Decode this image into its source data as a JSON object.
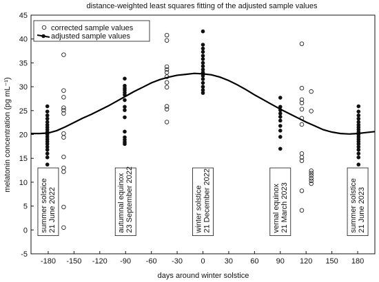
{
  "chart_data": {
    "type": "scatter",
    "title": "distance-weighted least squares fitting of the adjusted sample values",
    "xlabel": "days around winter solstice",
    "ylabel": "melatonin concentration (pg mL⁻¹)",
    "xlim": [
      -200,
      200
    ],
    "ylim": [
      -5,
      45
    ],
    "x_ticks": [
      "-180",
      "-150",
      "-120",
      "-90",
      "-60",
      "-30",
      "0",
      "30",
      "60",
      "90",
      "120",
      "150",
      "180"
    ],
    "y_ticks": [
      "-5",
      "0",
      "5",
      "10",
      "15",
      "20",
      "25",
      "30",
      "35",
      "40",
      "45"
    ],
    "grid": false,
    "legend_position": "top-left",
    "series": [
      {
        "name": "corrected sample values",
        "marker": "open-circle",
        "color": "#222222",
        "points": [
          [
            -162,
            36.7
          ],
          [
            -162,
            29.2
          ],
          [
            -162,
            27.8
          ],
          [
            -162,
            25.6
          ],
          [
            -162,
            25.1
          ],
          [
            -162,
            24.4
          ],
          [
            -162,
            20.2
          ],
          [
            -162,
            19.4
          ],
          [
            -162,
            15.3
          ],
          [
            -162,
            13.0
          ],
          [
            -162,
            12.2
          ],
          [
            -162,
            4.8
          ],
          [
            -162,
            0.5
          ],
          [
            -42,
            40.8
          ],
          [
            -42,
            39.7
          ],
          [
            -42,
            34.2
          ],
          [
            -42,
            33.6
          ],
          [
            -42,
            33.0
          ],
          [
            -42,
            32.1
          ],
          [
            -42,
            30.9
          ],
          [
            -42,
            29.9
          ],
          [
            -42,
            25.9
          ],
          [
            -42,
            25.3
          ],
          [
            -42,
            22.6
          ],
          [
            115,
            39.0
          ],
          [
            115,
            29.7
          ],
          [
            115,
            27.3
          ],
          [
            115,
            26.6
          ],
          [
            115,
            25.3
          ],
          [
            115,
            23.4
          ],
          [
            115,
            22.1
          ],
          [
            115,
            16.0
          ],
          [
            115,
            15.2
          ],
          [
            115,
            14.5
          ],
          [
            115,
            8.2
          ],
          [
            115,
            4.1
          ],
          [
            126,
            29.0
          ],
          [
            126,
            24.9
          ],
          [
            126,
            12.4
          ],
          [
            126,
            11.9
          ],
          [
            126,
            11.4
          ],
          [
            126,
            10.8
          ],
          [
            126,
            10.3
          ],
          [
            126,
            9.7
          ]
        ]
      },
      {
        "name": "adjusted sample values",
        "marker": "filled-circle",
        "color": "#111111",
        "points": [
          [
            -181,
            25.9
          ],
          [
            -181,
            24.8
          ],
          [
            -181,
            24.0
          ],
          [
            -181,
            23.3
          ],
          [
            -181,
            22.6
          ],
          [
            -181,
            22.0
          ],
          [
            -181,
            21.5
          ],
          [
            -181,
            21.0
          ],
          [
            -181,
            20.5
          ],
          [
            -181,
            20.0
          ],
          [
            -181,
            19.5
          ],
          [
            -181,
            19.0
          ],
          [
            -181,
            18.5
          ],
          [
            -181,
            18.0
          ],
          [
            -181,
            17.4
          ],
          [
            -181,
            16.8
          ],
          [
            -181,
            16.0
          ],
          [
            -181,
            15.2
          ],
          [
            -181,
            13.7
          ],
          [
            -91,
            31.7
          ],
          [
            -91,
            30.2
          ],
          [
            -91,
            29.7
          ],
          [
            -91,
            29.3
          ],
          [
            -91,
            28.8
          ],
          [
            -91,
            28.3
          ],
          [
            -91,
            27.2
          ],
          [
            -91,
            25.8
          ],
          [
            -91,
            25.1
          ],
          [
            -91,
            23.6
          ],
          [
            -91,
            20.6
          ],
          [
            -91,
            19.4
          ],
          [
            -91,
            18.9
          ],
          [
            -91,
            18.4
          ],
          [
            -91,
            18.0
          ],
          [
            0,
            41.6
          ],
          [
            0,
            38.8
          ],
          [
            0,
            38.0
          ],
          [
            0,
            37.3
          ],
          [
            0,
            36.5
          ],
          [
            0,
            35.8
          ],
          [
            0,
            35.0
          ],
          [
            0,
            34.3
          ],
          [
            0,
            33.6
          ],
          [
            0,
            33.0
          ],
          [
            0,
            32.3
          ],
          [
            0,
            31.6
          ],
          [
            0,
            30.8
          ],
          [
            0,
            30.0
          ],
          [
            0,
            29.3
          ],
          [
            0,
            28.7
          ],
          [
            90,
            27.7
          ],
          [
            90,
            25.8
          ],
          [
            90,
            25.1
          ],
          [
            90,
            24.4
          ],
          [
            90,
            23.7
          ],
          [
            90,
            22.9
          ],
          [
            90,
            21.8
          ],
          [
            90,
            20.8
          ],
          [
            90,
            19.5
          ],
          [
            90,
            17.0
          ],
          [
            181,
            25.9
          ],
          [
            181,
            24.8
          ],
          [
            181,
            24.0
          ],
          [
            181,
            23.3
          ],
          [
            181,
            22.6
          ],
          [
            181,
            22.0
          ],
          [
            181,
            21.5
          ],
          [
            181,
            21.0
          ],
          [
            181,
            20.5
          ],
          [
            181,
            20.0
          ],
          [
            181,
            19.5
          ],
          [
            181,
            19.0
          ],
          [
            181,
            18.5
          ],
          [
            181,
            18.0
          ],
          [
            181,
            17.4
          ],
          [
            181,
            16.8
          ],
          [
            181,
            16.0
          ],
          [
            181,
            15.2
          ],
          [
            181,
            13.7
          ]
        ]
      }
    ],
    "fit_curve": {
      "series": "adjusted sample values",
      "points": [
        [
          -200,
          20.2
        ],
        [
          -190,
          20.2
        ],
        [
          -180,
          20.3
        ],
        [
          -170,
          20.8
        ],
        [
          -160,
          21.6
        ],
        [
          -150,
          22.5
        ],
        [
          -140,
          23.4
        ],
        [
          -130,
          24.2
        ],
        [
          -120,
          25.1
        ],
        [
          -110,
          26.0
        ],
        [
          -100,
          27.0
        ],
        [
          -90,
          28.0
        ],
        [
          -80,
          29.0
        ],
        [
          -70,
          29.9
        ],
        [
          -60,
          30.8
        ],
        [
          -50,
          31.5
        ],
        [
          -40,
          32.0
        ],
        [
          -30,
          32.4
        ],
        [
          -20,
          32.6
        ],
        [
          -10,
          32.8
        ],
        [
          0,
          32.7
        ],
        [
          10,
          32.5
        ],
        [
          20,
          32.0
        ],
        [
          30,
          31.3
        ],
        [
          40,
          30.4
        ],
        [
          50,
          29.4
        ],
        [
          60,
          28.3
        ],
        [
          70,
          27.3
        ],
        [
          80,
          26.3
        ],
        [
          90,
          25.3
        ],
        [
          100,
          24.4
        ],
        [
          110,
          23.5
        ],
        [
          120,
          22.6
        ],
        [
          130,
          21.8
        ],
        [
          140,
          21.0
        ],
        [
          150,
          20.5
        ],
        [
          160,
          20.2
        ],
        [
          170,
          20.1
        ],
        [
          180,
          20.2
        ],
        [
          190,
          20.4
        ],
        [
          200,
          20.6
        ]
      ]
    },
    "annotations": [
      {
        "x": -180,
        "lines": [
          "summer solstice",
          "21 June 2022"
        ]
      },
      {
        "x": -90,
        "lines": [
          "autumnal equinox",
          "23 September 2022"
        ]
      },
      {
        "x": 0,
        "lines": [
          "winter solstice",
          "21 December 2022"
        ]
      },
      {
        "x": 90,
        "lines": [
          "vernal equinox",
          "21 March 2023"
        ]
      },
      {
        "x": 180,
        "lines": [
          "summer solstice",
          "21 June 2023"
        ]
      }
    ]
  }
}
